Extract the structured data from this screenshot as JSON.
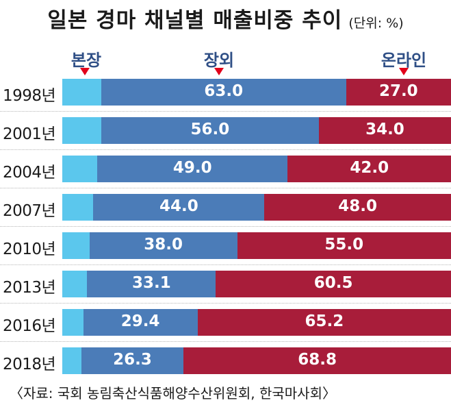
{
  "header": {
    "title": "일본 경마 채널별 매출비중 추이",
    "unit": "(단위: %)"
  },
  "legend": {
    "store": "본장",
    "venue": "장외",
    "online": "온라인"
  },
  "colors": {
    "store": "#5bc7ed",
    "venue": "#4b7cb8",
    "online": "#a81d3a",
    "arrow": "#e2001a"
  },
  "source": "〈자료: 국회 농림축산식품해양수산위원회, 한국마사회〉",
  "chart_data": {
    "type": "bar",
    "orientation": "horizontal",
    "stacked": true,
    "title": "일본 경마 채널별 매출비중 추이",
    "unit": "(단위: %)",
    "categories": [
      "1998년",
      "2001년",
      "2004년",
      "2007년",
      "2010년",
      "2013년",
      "2016년",
      "2018년"
    ],
    "series": [
      {
        "name": "본장",
        "values": [
          10.0,
          10.0,
          9.0,
          8.0,
          7.0,
          6.4,
          5.4,
          4.9
        ]
      },
      {
        "name": "장외",
        "values": [
          63.0,
          56.0,
          49.0,
          44.0,
          38.0,
          33.1,
          29.4,
          26.3
        ]
      },
      {
        "name": "온라인",
        "values": [
          27.0,
          34.0,
          42.0,
          48.0,
          55.0,
          60.5,
          65.2,
          68.8
        ]
      }
    ],
    "value_labels": {
      "장외": [
        "63.0",
        "56.0",
        "49.0",
        "44.0",
        "38.0",
        "33.1",
        "29.4",
        "26.3"
      ],
      "온라인": [
        "27.0",
        "34.0",
        "42.0",
        "48.0",
        "55.0",
        "60.5",
        "65.2",
        "68.8"
      ]
    },
    "xlim": [
      0,
      100
    ],
    "legend_position": "top"
  }
}
